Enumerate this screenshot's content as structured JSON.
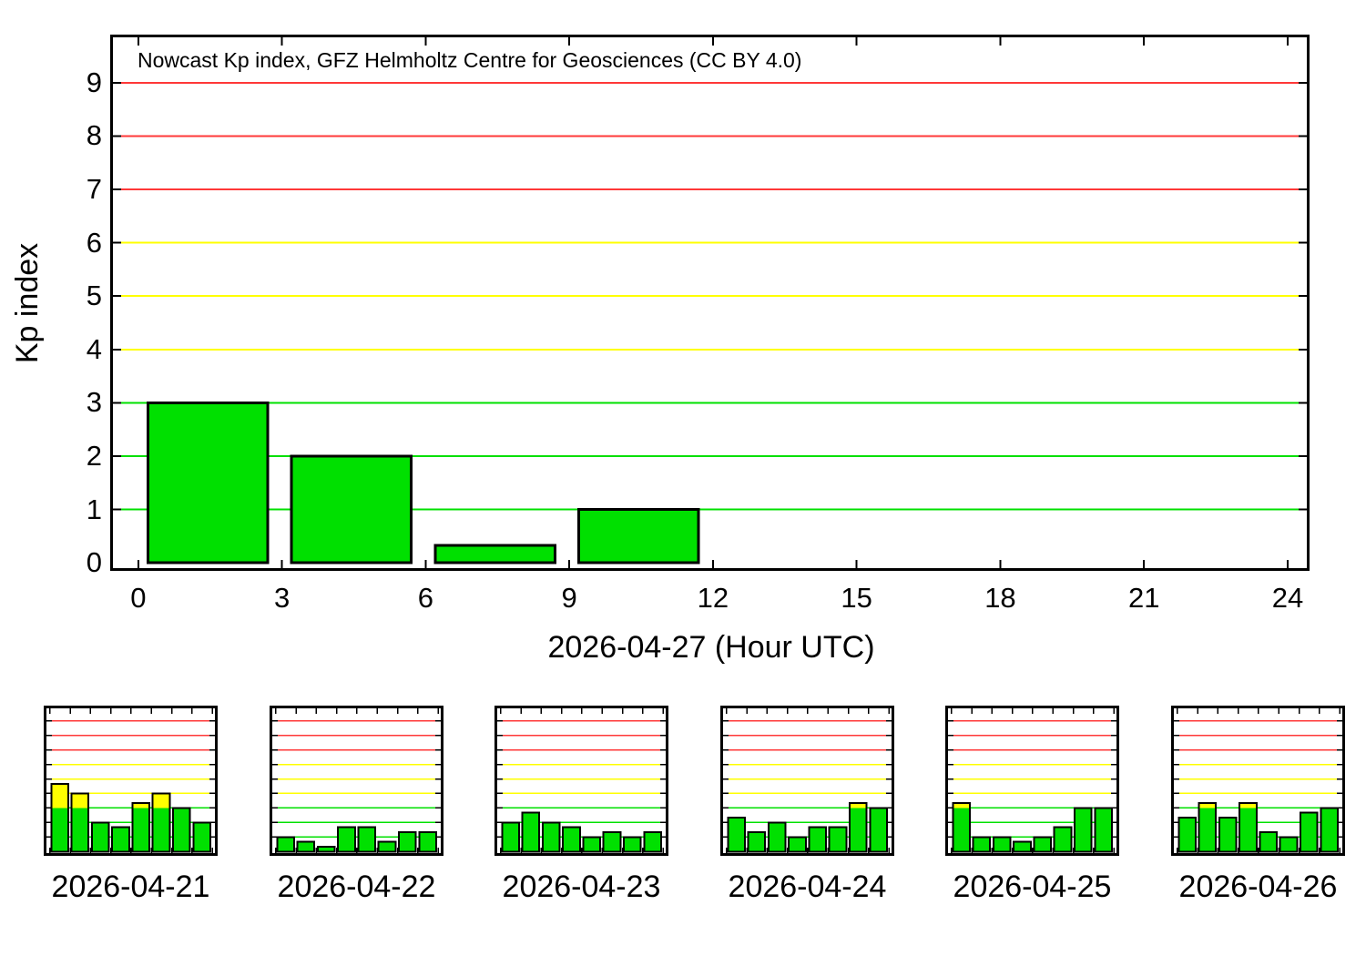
{
  "page": {
    "background": "#ffffff"
  },
  "colors": {
    "kp_quiet_green": "#00e000",
    "kp_active_yellow": "#ffff00",
    "kp_storm_red": "#ff3838",
    "grid_green": "#00e000",
    "grid_yellow": "#ffff00",
    "grid_red": "#ff3838",
    "bar_outline": "#000000",
    "axis": "#000000",
    "text": "#000000"
  },
  "severity_thresholds": {
    "green_upto": 3,
    "yellow_upto": 6,
    "red_upto": 9
  },
  "chart_data": [
    {
      "id": "nowcast",
      "type": "bar",
      "title": "Nowcast Kp index, GFZ Helmholtz Centre for Geosciences (CC BY 4.0)",
      "xlabel": "2026-04-27 (Hour UTC)",
      "ylabel": "Kp index",
      "x_ticks": [
        "0",
        "3",
        "6",
        "9",
        "12",
        "15",
        "18",
        "21",
        "24"
      ],
      "x_tick_hours": [
        0,
        3,
        6,
        9,
        12,
        15,
        18,
        21,
        24
      ],
      "y_ticks": [
        "0",
        "1",
        "2",
        "3",
        "4",
        "5",
        "6",
        "7",
        "8",
        "9"
      ],
      "y_tick_values": [
        0,
        1,
        2,
        3,
        4,
        5,
        6,
        7,
        8,
        9
      ],
      "xlim": [
        -0.53,
        24.4
      ],
      "ylim": [
        -0.1,
        9.85
      ],
      "grid": "horizontal",
      "legend": "none",
      "bin_hours": 3,
      "x_start_hours": [
        0,
        3,
        6,
        9
      ],
      "values": [
        3,
        2,
        0.33,
        1
      ]
    },
    {
      "id": "history-2026-04-21",
      "type": "bar",
      "date": "2026-04-21",
      "bin_hours": 3,
      "x_start_hours": [
        0,
        3,
        6,
        9,
        12,
        15,
        18,
        21
      ],
      "values": [
        4.67,
        4,
        2,
        1.67,
        3.33,
        4,
        3,
        2
      ]
    },
    {
      "id": "history-2026-04-22",
      "type": "bar",
      "date": "2026-04-22",
      "bin_hours": 3,
      "x_start_hours": [
        0,
        3,
        6,
        9,
        12,
        15,
        18,
        21
      ],
      "values": [
        1,
        0.67,
        0.33,
        1.67,
        1.67,
        0.67,
        1.33,
        1.33
      ]
    },
    {
      "id": "history-2026-04-23",
      "type": "bar",
      "date": "2026-04-23",
      "bin_hours": 3,
      "x_start_hours": [
        0,
        3,
        6,
        9,
        12,
        15,
        18,
        21
      ],
      "values": [
        2,
        2.67,
        2,
        1.67,
        1,
        1.33,
        1,
        1.33
      ]
    },
    {
      "id": "history-2026-04-24",
      "type": "bar",
      "date": "2026-04-24",
      "bin_hours": 3,
      "x_start_hours": [
        0,
        3,
        6,
        9,
        12,
        15,
        18,
        21
      ],
      "values": [
        2.33,
        1.33,
        2,
        1,
        1.67,
        1.67,
        3.33,
        3
      ]
    },
    {
      "id": "history-2026-04-25",
      "type": "bar",
      "date": "2026-04-25",
      "bin_hours": 3,
      "x_start_hours": [
        0,
        3,
        6,
        9,
        12,
        15,
        18,
        21
      ],
      "values": [
        3.33,
        1,
        1,
        0.67,
        1,
        1.67,
        3,
        3
      ]
    },
    {
      "id": "history-2026-04-26",
      "type": "bar",
      "date": "2026-04-26",
      "bin_hours": 3,
      "x_start_hours": [
        0,
        3,
        6,
        9,
        12,
        15,
        18,
        21
      ],
      "values": [
        2.33,
        3.33,
        2.33,
        3.33,
        1.33,
        1,
        2.67,
        3
      ]
    }
  ]
}
